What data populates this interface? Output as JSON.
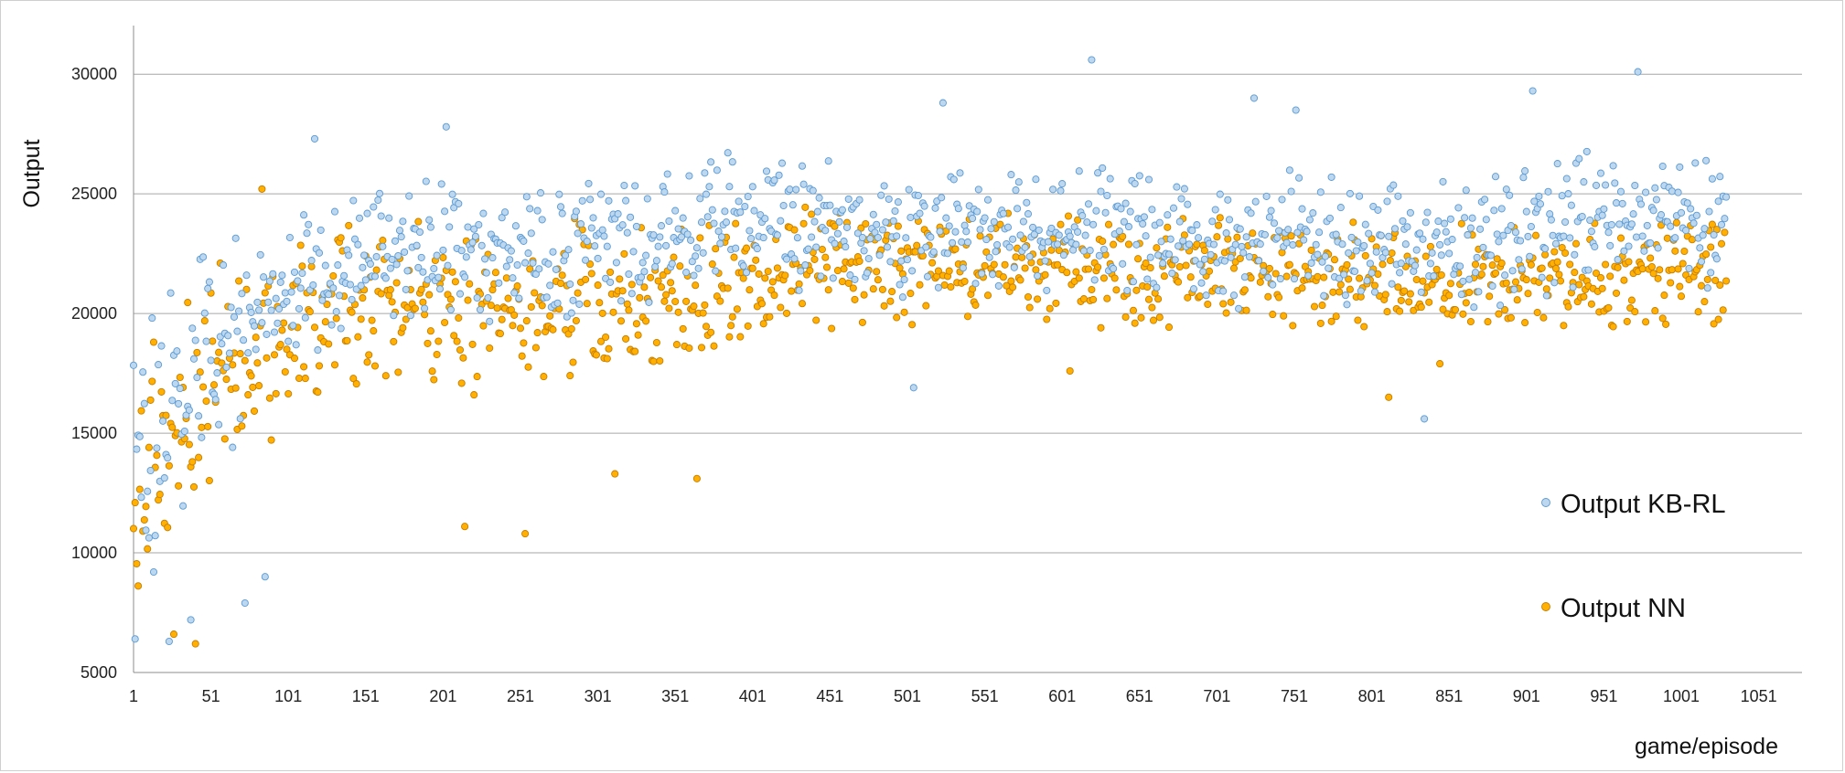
{
  "chart_data": {
    "type": "scatter",
    "title": "",
    "xlabel": "game/episode",
    "ylabel": "Output",
    "xlim": [
      1,
      1079
    ],
    "ylim": [
      5000,
      31000
    ],
    "x_ticks": [
      1,
      51,
      101,
      151,
      201,
      251,
      301,
      351,
      401,
      451,
      501,
      551,
      601,
      651,
      701,
      751,
      801,
      851,
      901,
      951,
      1001,
      1051
    ],
    "y_ticks": [
      5000,
      10000,
      15000,
      20000,
      25000,
      30000
    ],
    "grid": "horizontal",
    "legend_position": "bottom-right",
    "n_points_per_series": 1030,
    "series": [
      {
        "name": "Output KB-RL",
        "color_fill": "#bdd7ee",
        "color_edge": "#5b9bd5",
        "anchors": [
          [
            1,
            14000
          ],
          [
            50,
            18000
          ],
          [
            100,
            21000
          ],
          [
            150,
            22500
          ],
          [
            200,
            23000
          ],
          [
            250,
            22500
          ],
          [
            300,
            23000
          ],
          [
            350,
            23500
          ],
          [
            400,
            24000
          ],
          [
            450,
            23500
          ],
          [
            500,
            23000
          ],
          [
            550,
            23500
          ],
          [
            600,
            23500
          ],
          [
            650,
            23500
          ],
          [
            700,
            23000
          ],
          [
            750,
            23500
          ],
          [
            800,
            23000
          ],
          [
            850,
            23000
          ],
          [
            900,
            23500
          ],
          [
            950,
            24000
          ],
          [
            1030,
            24000
          ]
        ],
        "spread": [
          [
            1,
            4500
          ],
          [
            50,
            3500
          ],
          [
            100,
            2500
          ],
          [
            200,
            2300
          ],
          [
            400,
            2000
          ],
          [
            600,
            2000
          ],
          [
            1030,
            2200
          ]
        ],
        "outliers": [
          [
            2,
            6400
          ],
          [
            24,
            6300
          ],
          [
            38,
            7200
          ],
          [
            73,
            7900
          ],
          [
            86,
            9000
          ],
          [
            14,
            9200
          ],
          [
            620,
            30600
          ],
          [
            973,
            30100
          ],
          [
            905,
            29300
          ],
          [
            835,
            15600
          ],
          [
            505,
            16900
          ],
          [
            203,
            27800
          ],
          [
            118,
            27300
          ],
          [
            725,
            29000
          ],
          [
            752,
            28500
          ],
          [
            524,
            28800
          ]
        ]
      },
      {
        "name": "Output NN",
        "color_fill": "#ffb000",
        "color_edge": "#c77d00",
        "anchors": [
          [
            1,
            12500
          ],
          [
            50,
            17000
          ],
          [
            100,
            19000
          ],
          [
            150,
            20000
          ],
          [
            200,
            20500
          ],
          [
            250,
            20500
          ],
          [
            300,
            20500
          ],
          [
            350,
            21000
          ],
          [
            400,
            21500
          ],
          [
            450,
            22000
          ],
          [
            500,
            22000
          ],
          [
            550,
            22000
          ],
          [
            600,
            22000
          ],
          [
            650,
            21500
          ],
          [
            700,
            22000
          ],
          [
            750,
            21500
          ],
          [
            800,
            21500
          ],
          [
            850,
            21500
          ],
          [
            900,
            21500
          ],
          [
            950,
            21500
          ],
          [
            1030,
            21500
          ]
        ],
        "spread": [
          [
            1,
            4500
          ],
          [
            50,
            3500
          ],
          [
            100,
            3000
          ],
          [
            200,
            2800
          ],
          [
            400,
            2000
          ],
          [
            600,
            1600
          ],
          [
            1030,
            1800
          ]
        ],
        "outliers": [
          [
            41,
            6200
          ],
          [
            27,
            6600
          ],
          [
            84,
            25200
          ],
          [
            215,
            11100
          ],
          [
            254,
            10800
          ],
          [
            365,
            13100
          ],
          [
            312,
            13300
          ],
          [
            812,
            16500
          ],
          [
            845,
            17900
          ],
          [
            606,
            17600
          ]
        ]
      }
    ]
  }
}
